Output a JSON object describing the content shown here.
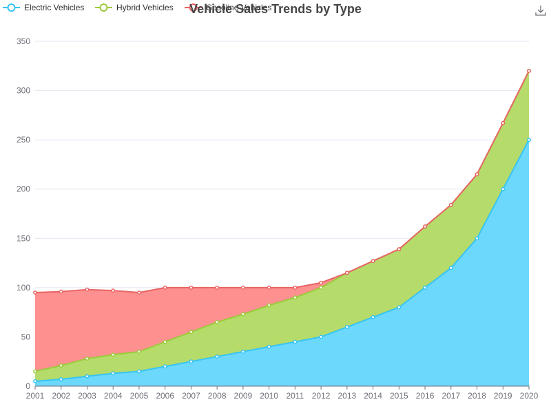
{
  "chart_data": {
    "type": "area",
    "stacked": true,
    "title": "Vehicle Sales Trends by Type",
    "xlabel": "",
    "ylabel": "",
    "ylim": [
      0,
      350
    ],
    "y_ticks": [
      0,
      50,
      100,
      150,
      200,
      250,
      300,
      350
    ],
    "grid": true,
    "legend_position": "top-left",
    "x": [
      "2001",
      "2002",
      "2003",
      "2004",
      "2005",
      "2006",
      "2007",
      "2008",
      "2009",
      "2010",
      "2011",
      "2012",
      "2013",
      "2014",
      "2015",
      "2016",
      "2017",
      "2018",
      "2019",
      "2020"
    ],
    "series": [
      {
        "name": "Electric Vehicles",
        "color": "#37c4f3",
        "fill": "#6cd8fc",
        "values": [
          5,
          7,
          10,
          13,
          15,
          20,
          25,
          30,
          35,
          40,
          45,
          50,
          60,
          70,
          80,
          100,
          120,
          150,
          200,
          250
        ]
      },
      {
        "name": "Hybrid Vehicles",
        "color": "#9acb3a",
        "fill": "#b5db6b",
        "values": [
          10,
          14,
          18,
          19,
          20,
          25,
          30,
          35,
          38,
          42,
          45,
          50,
          55,
          57,
          59,
          62,
          64,
          65,
          67,
          70
        ]
      },
      {
        "name": "Gasoline Vehicles",
        "color": "#e86464",
        "fill": "#ff9090",
        "values": [
          80,
          75,
          70,
          65,
          60,
          55,
          45,
          35,
          27,
          18,
          10,
          5,
          0,
          0,
          0,
          0,
          0,
          0,
          0,
          0
        ]
      }
    ]
  },
  "toolbox": {
    "download_icon": "download-icon"
  }
}
